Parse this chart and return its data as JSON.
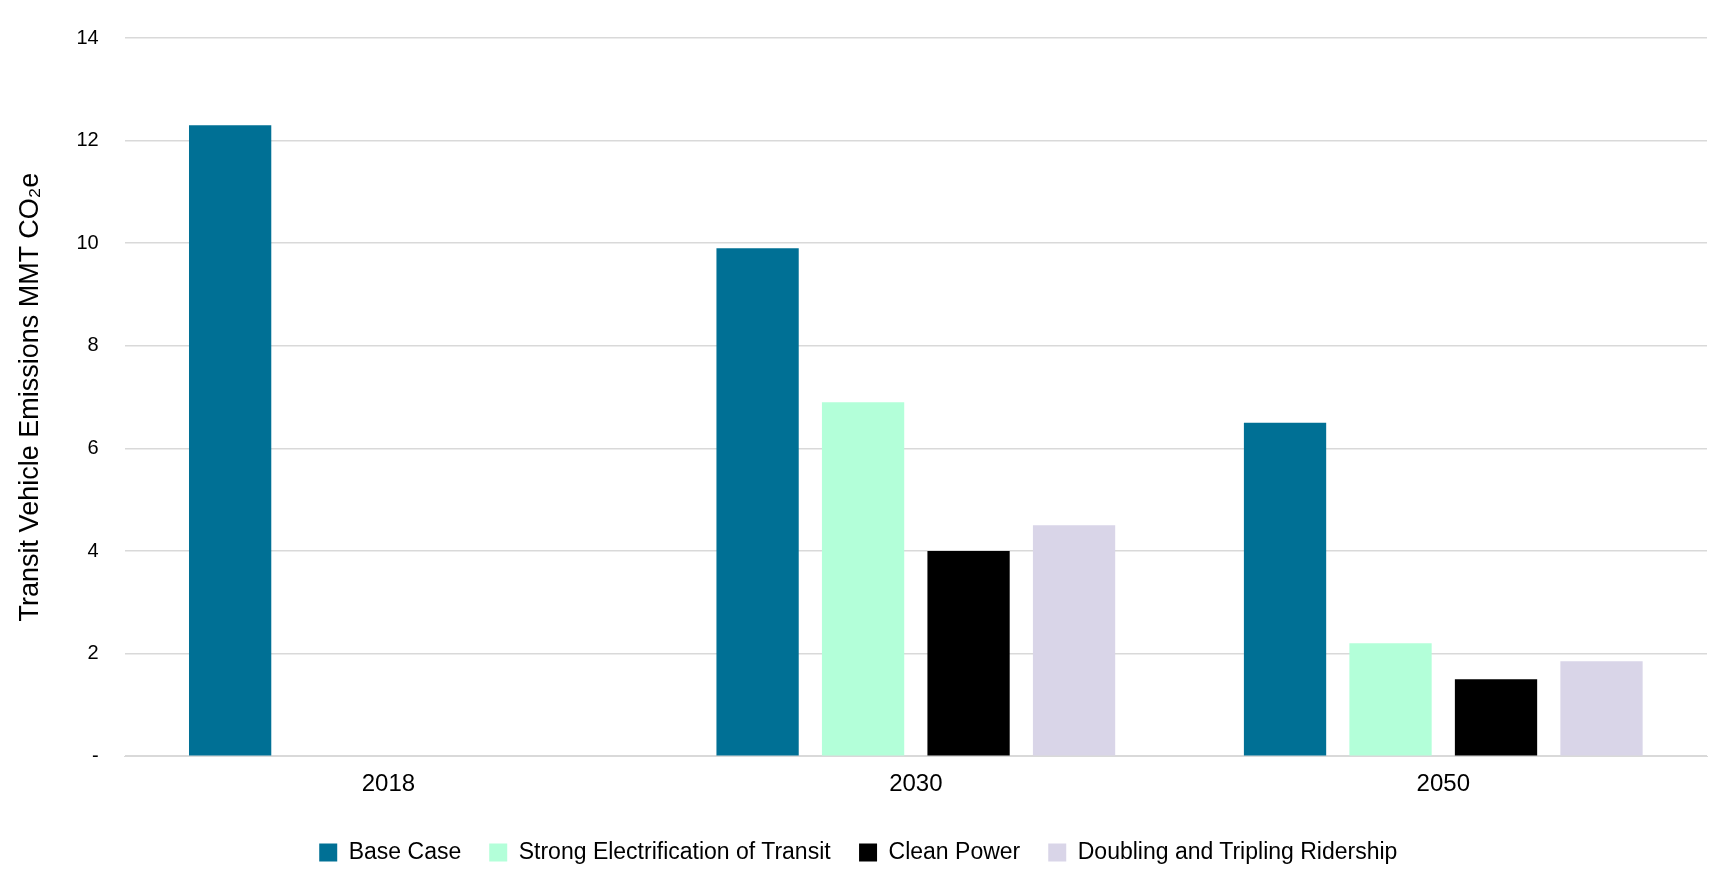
{
  "chart_data": {
    "type": "bar",
    "ylabel": "Transit Vehicle Emissions MMT CO₂e",
    "categories": [
      "2018",
      "2030",
      "2050"
    ],
    "series": [
      {
        "name": "Base Case",
        "color": "#007095",
        "values": [
          12.3,
          9.9,
          6.5
        ]
      },
      {
        "name": "Strong Electrification of Transit",
        "color": "#b3ffd9",
        "values": [
          null,
          6.9,
          2.2
        ]
      },
      {
        "name": "Clean Power",
        "color": "#000000",
        "values": [
          null,
          4.0,
          1.5
        ]
      },
      {
        "name": "Doubling and Tripling Ridership",
        "color": "#d9d5e8",
        "values": [
          null,
          4.5,
          1.85
        ]
      }
    ],
    "ylim": [
      0,
      14
    ],
    "yticks": [
      {
        "value": 0,
        "label": "-"
      },
      2,
      4,
      6,
      8,
      10,
      12,
      14
    ],
    "grid": "y",
    "legend": "bottom"
  }
}
